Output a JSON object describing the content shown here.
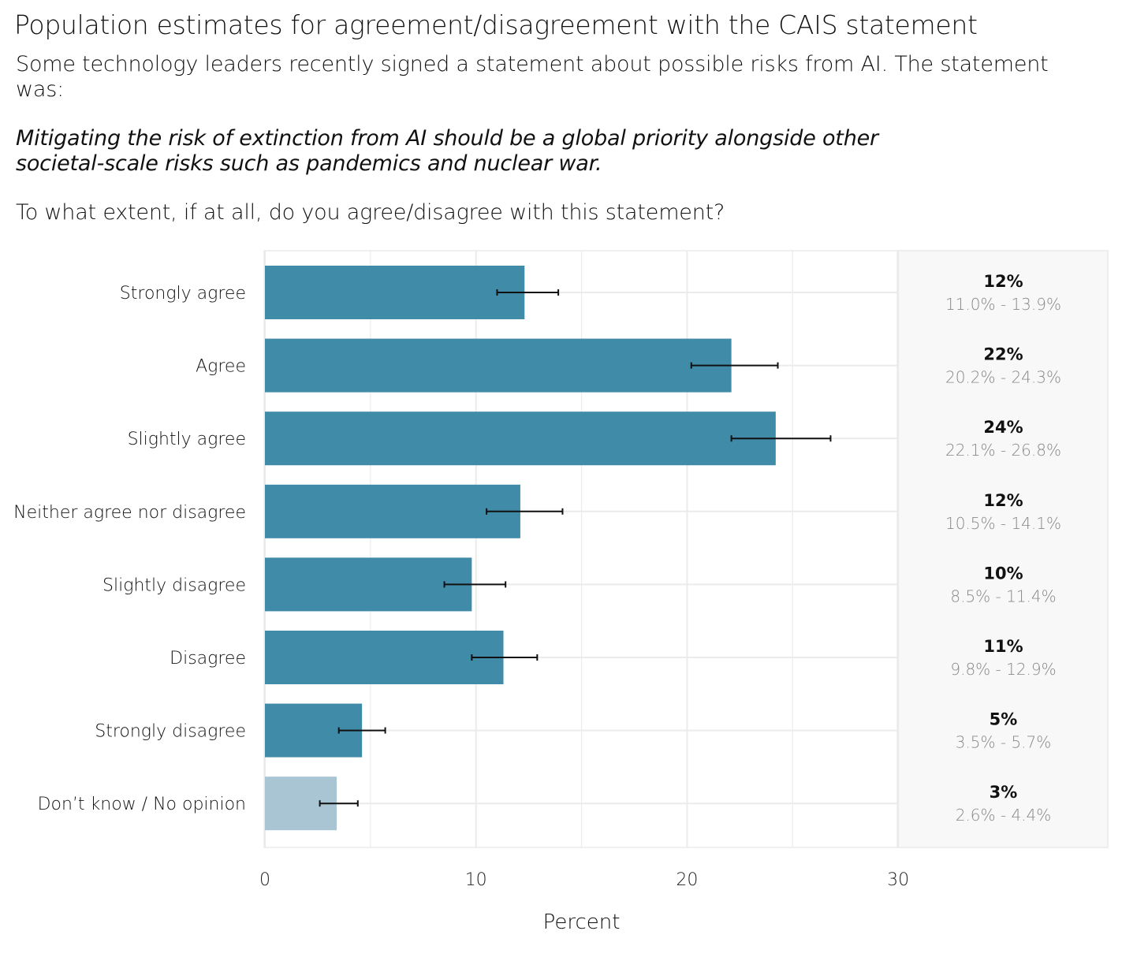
{
  "header": {
    "title": "Population estimates for agreement/disagreement with the CAIS statement",
    "subtitle": "Some technology leaders recently signed a statement about possible risks from AI. The statement was:",
    "quote": "Mitigating the risk of extinction from AI should be a global priority alongside other societal-scale risks such as pandemics and nuclear war.",
    "question": "To what extent, if at all, do you agree/disagree with this statement?"
  },
  "chart_data": {
    "type": "bar",
    "orientation": "horizontal",
    "xlabel": "Percent",
    "xlim": [
      0,
      30
    ],
    "xticks": [
      0,
      10,
      20,
      30
    ],
    "categories": [
      "Strongly agree",
      "Agree",
      "Slightly agree",
      "Neither agree nor disagree",
      "Slightly disagree",
      "Disagree",
      "Strongly disagree",
      "Don’t know / No opinion"
    ],
    "values": [
      12.3,
      22.1,
      24.2,
      12.1,
      9.8,
      11.3,
      4.6,
      3.4
    ],
    "ci_low": [
      11.0,
      20.2,
      22.1,
      10.5,
      8.5,
      9.8,
      3.5,
      2.6
    ],
    "ci_high": [
      13.9,
      24.3,
      26.8,
      14.1,
      11.4,
      12.9,
      5.7,
      4.4
    ],
    "value_labels": [
      "12%",
      "22%",
      "24%",
      "12%",
      "10%",
      "11%",
      "5%",
      "3%"
    ],
    "ci_labels": [
      "11.0% - 13.9%",
      "20.2% - 24.3%",
      "22.1% - 26.8%",
      "10.5% - 14.1%",
      "8.5% - 11.4%",
      "9.8% - 12.9%",
      "3.5% - 5.7%",
      "2.6% - 4.4%"
    ],
    "colors": {
      "bar": "#3f8ba8",
      "bar_muted": "#a9c5d3",
      "grid": "#ebebeb",
      "panel_bg": "#f8f8f8",
      "error_bar": "#111111",
      "ci_text": "#888888"
    },
    "grid": true
  }
}
